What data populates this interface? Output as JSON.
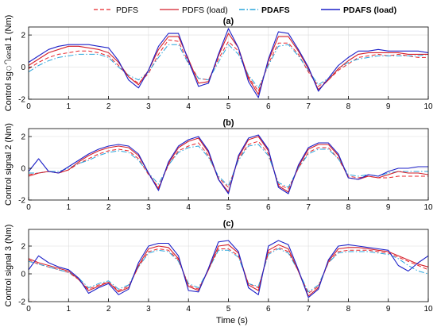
{
  "chart_data": {
    "type": "line",
    "xlabel": "Time (s)",
    "legend": {
      "placement": "top",
      "entries": [
        {
          "label": "PDFS",
          "color": "#e8262b",
          "style": "dashed",
          "bold": false
        },
        {
          "label": "PDFS (load)",
          "color": "#d41f2a",
          "style": "solid",
          "bold": false
        },
        {
          "label": "PDAFS",
          "color": "#2aa5dc",
          "style": "dashdot",
          "bold": true
        },
        {
          "label": "PDAFS (load)",
          "color": "#1c20c8",
          "style": "solid",
          "bold": true
        }
      ]
    },
    "xlim": [
      0,
      10
    ],
    "xticks": [
      0,
      1,
      2,
      3,
      4,
      5,
      6,
      7,
      8,
      9,
      10
    ],
    "grid": true,
    "panels": [
      {
        "title": "(a)",
        "ylabel": "Control sgினal 1 (Nm)",
        "ylim": [
          -2,
          2.5
        ],
        "yticks": [
          -2,
          0,
          2
        ],
        "x": [
          0,
          0.25,
          0.5,
          0.75,
          1,
          1.25,
          1.5,
          1.75,
          2,
          2.25,
          2.5,
          2.75,
          3,
          3.25,
          3.5,
          3.75,
          4,
          4.25,
          4.5,
          4.75,
          5,
          5.25,
          5.5,
          5.75,
          6,
          6.25,
          6.5,
          6.75,
          7,
          7.25,
          7.5,
          7.75,
          8,
          8.25,
          8.5,
          8.75,
          9,
          9.25,
          9.5,
          9.75,
          10
        ],
        "series": [
          {
            "name": "PDFS",
            "values": [
              -0.1,
              0.3,
              0.6,
              0.8,
              0.9,
              1.0,
              1.0,
              0.9,
              0.7,
              0.1,
              -0.6,
              -1.0,
              -0.4,
              0.8,
              1.7,
              1.6,
              0.3,
              -0.7,
              -0.8,
              0.5,
              1.6,
              1.0,
              -0.6,
              -1.5,
              0.2,
              1.5,
              1.5,
              0.8,
              -0.3,
              -1.2,
              -0.8,
              -0.2,
              0.2,
              0.6,
              0.7,
              0.8,
              0.7,
              0.8,
              0.7,
              0.6,
              0.6
            ]
          },
          {
            "name": "PDFS (load)",
            "values": [
              0.1,
              0.5,
              0.9,
              1.1,
              1.3,
              1.3,
              1.2,
              1.1,
              0.9,
              0.3,
              -0.6,
              -1.1,
              -0.2,
              1.1,
              1.9,
              1.9,
              0.5,
              -1.0,
              -0.9,
              0.7,
              2.1,
              1.2,
              -0.7,
              -1.7,
              0.4,
              1.9,
              1.9,
              1.0,
              -0.1,
              -1.4,
              -0.8,
              -0.1,
              0.4,
              0.8,
              0.9,
              0.9,
              0.9,
              0.9,
              0.8,
              0.8,
              0.8
            ]
          },
          {
            "name": "PDAFS",
            "values": [
              -0.3,
              0.1,
              0.4,
              0.6,
              0.7,
              0.8,
              0.8,
              0.8,
              0.6,
              0.0,
              -0.5,
              -0.8,
              -0.3,
              0.6,
              1.4,
              1.4,
              0.2,
              -0.7,
              -0.8,
              0.3,
              1.4,
              0.8,
              -0.5,
              -1.3,
              0.1,
              1.3,
              1.4,
              0.7,
              -0.2,
              -1.1,
              -0.7,
              -0.1,
              0.3,
              0.5,
              0.6,
              0.7,
              0.7,
              0.7,
              0.7,
              0.7,
              0.8
            ]
          },
          {
            "name": "PDAFS (load)",
            "values": [
              0.3,
              0.7,
              1.1,
              1.3,
              1.4,
              1.4,
              1.4,
              1.3,
              1.2,
              0.4,
              -0.8,
              -1.3,
              -0.2,
              1.3,
              2.1,
              2.1,
              0.4,
              -1.2,
              -1.0,
              0.8,
              2.4,
              1.2,
              -0.9,
              -1.9,
              0.5,
              2.2,
              2.1,
              1.1,
              0.0,
              -1.5,
              -0.7,
              0.1,
              0.6,
              1.0,
              1.0,
              1.1,
              1.0,
              1.0,
              1.0,
              1.0,
              0.9
            ]
          }
        ]
      },
      {
        "title": "(b)",
        "ylabel": "Control signal 2 (Nm)",
        "ylim": [
          -2,
          2.5
        ],
        "yticks": [
          -2,
          0,
          2
        ],
        "x": [
          0,
          0.25,
          0.5,
          0.75,
          1,
          1.25,
          1.5,
          1.75,
          2,
          2.25,
          2.5,
          2.75,
          3,
          3.25,
          3.5,
          3.75,
          4,
          4.25,
          4.5,
          4.75,
          5,
          5.25,
          5.5,
          5.75,
          6,
          6.25,
          6.5,
          6.75,
          7,
          7.25,
          7.5,
          7.75,
          8,
          8.25,
          8.5,
          8.75,
          9,
          9.25,
          9.5,
          9.75,
          10
        ],
        "series": [
          {
            "name": "PDFS",
            "values": [
              -0.4,
              -0.3,
              -0.2,
              -0.3,
              -0.1,
              0.3,
              0.6,
              0.9,
              1.1,
              1.2,
              1.1,
              0.6,
              -0.4,
              -1.2,
              0.2,
              1.1,
              1.4,
              1.6,
              0.8,
              -0.6,
              -1.2,
              0.6,
              1.5,
              1.7,
              0.9,
              -1.0,
              -1.3,
              0.0,
              1.0,
              1.3,
              1.3,
              0.6,
              -0.5,
              -0.6,
              -0.5,
              -0.6,
              -0.6,
              -0.5,
              -0.5,
              -0.5,
              -0.5
            ]
          },
          {
            "name": "PDFS (load)",
            "values": [
              -0.5,
              -0.3,
              -0.2,
              -0.3,
              -0.1,
              0.4,
              0.8,
              1.1,
              1.3,
              1.4,
              1.3,
              0.8,
              -0.3,
              -1.3,
              0.3,
              1.3,
              1.7,
              1.9,
              1.0,
              -0.7,
              -1.5,
              0.7,
              1.8,
              2.0,
              1.1,
              -1.1,
              -1.5,
              0.1,
              1.2,
              1.5,
              1.5,
              0.8,
              -0.6,
              -0.7,
              -0.5,
              -0.6,
              -0.4,
              -0.2,
              -0.3,
              -0.3,
              -0.4
            ]
          },
          {
            "name": "PDAFS",
            "values": [
              -0.3,
              -0.3,
              -0.2,
              -0.2,
              0.0,
              0.3,
              0.5,
              0.8,
              1.0,
              1.1,
              1.0,
              0.5,
              -0.3,
              -1.0,
              0.2,
              1.0,
              1.3,
              1.4,
              0.7,
              -0.5,
              -1.1,
              0.5,
              1.4,
              1.5,
              0.8,
              -0.9,
              -1.2,
              0.0,
              0.9,
              1.2,
              1.2,
              0.6,
              -0.4,
              -0.5,
              -0.4,
              -0.5,
              -0.3,
              -0.2,
              -0.2,
              -0.2,
              -0.2
            ]
          },
          {
            "name": "PDAFS (load)",
            "values": [
              -0.2,
              0.6,
              -0.2,
              -0.3,
              0.1,
              0.5,
              0.9,
              1.2,
              1.4,
              1.5,
              1.4,
              0.9,
              -0.3,
              -1.4,
              0.4,
              1.4,
              1.8,
              2.0,
              1.1,
              -0.7,
              -1.6,
              0.8,
              1.9,
              2.1,
              1.2,
              -1.2,
              -1.6,
              0.2,
              1.3,
              1.6,
              1.6,
              0.9,
              -0.6,
              -0.7,
              -0.4,
              -0.5,
              -0.2,
              0.0,
              0.0,
              0.1,
              0.1
            ]
          }
        ]
      },
      {
        "title": "(c)",
        "ylabel": "Control signal 3 (Nm)",
        "ylim": [
          -2,
          3.2
        ],
        "yticks": [
          -2,
          0,
          2
        ],
        "x": [
          0,
          0.25,
          0.5,
          0.75,
          1,
          1.25,
          1.5,
          1.75,
          2,
          2.25,
          2.5,
          2.75,
          3,
          3.25,
          3.5,
          3.75,
          4,
          4.25,
          4.5,
          4.75,
          5,
          5.25,
          5.5,
          5.75,
          6,
          6.25,
          6.5,
          6.75,
          7,
          7.25,
          7.5,
          7.75,
          8,
          8.25,
          8.5,
          8.75,
          9,
          9.25,
          9.5,
          9.75,
          10
        ],
        "series": [
          {
            "name": "PDFS",
            "values": [
              1.0,
              0.7,
              0.5,
              0.3,
              0.1,
              -0.4,
              -1.1,
              -0.8,
              -0.6,
              -1.2,
              -0.9,
              0.5,
              1.6,
              1.8,
              1.7,
              1.0,
              -0.8,
              -1.1,
              0.3,
              1.8,
              1.8,
              1.3,
              -0.7,
              -1.0,
              1.5,
              1.9,
              1.6,
              0.2,
              -1.4,
              -0.9,
              0.8,
              1.6,
              1.7,
              1.7,
              1.7,
              1.6,
              1.5,
              1.2,
              0.9,
              0.6,
              0.3
            ]
          },
          {
            "name": "PDFS (load)",
            "values": [
              1.1,
              0.8,
              0.6,
              0.4,
              0.2,
              -0.4,
              -1.2,
              -0.9,
              -0.6,
              -1.3,
              -1.0,
              0.6,
              1.8,
              2.0,
              1.9,
              1.1,
              -0.9,
              -1.2,
              0.3,
              2.0,
              2.1,
              1.5,
              -0.8,
              -1.2,
              1.7,
              2.1,
              1.8,
              0.2,
              -1.6,
              -1.0,
              0.9,
              1.8,
              1.9,
              1.9,
              1.8,
              1.7,
              1.6,
              1.3,
              1.0,
              0.7,
              0.5
            ]
          },
          {
            "name": "PDAFS",
            "values": [
              0.9,
              0.7,
              0.5,
              0.3,
              0.1,
              -0.3,
              -1.0,
              -0.7,
              -0.5,
              -1.1,
              -0.8,
              0.5,
              1.5,
              1.7,
              1.6,
              0.9,
              -0.7,
              -1.0,
              0.3,
              1.7,
              1.7,
              1.2,
              -0.7,
              -0.9,
              1.4,
              1.8,
              1.5,
              0.2,
              -1.3,
              -0.8,
              0.8,
              1.5,
              1.6,
              1.6,
              1.6,
              1.5,
              1.4,
              1.1,
              0.6,
              0.2,
              0.0
            ]
          },
          {
            "name": "PDAFS (load)",
            "values": [
              0.3,
              1.3,
              0.8,
              0.5,
              0.3,
              -0.3,
              -1.4,
              -1.0,
              -0.7,
              -1.5,
              -1.1,
              0.8,
              2.0,
              2.2,
              2.2,
              1.3,
              -1.2,
              -1.3,
              0.4,
              2.3,
              2.4,
              1.6,
              -1.0,
              -1.5,
              2.0,
              2.4,
              2.1,
              0.3,
              -1.7,
              -1.1,
              1.0,
              2.0,
              2.1,
              2.0,
              1.9,
              1.8,
              1.7,
              0.6,
              0.2,
              0.8,
              1.3
            ]
          }
        ]
      }
    ]
  }
}
